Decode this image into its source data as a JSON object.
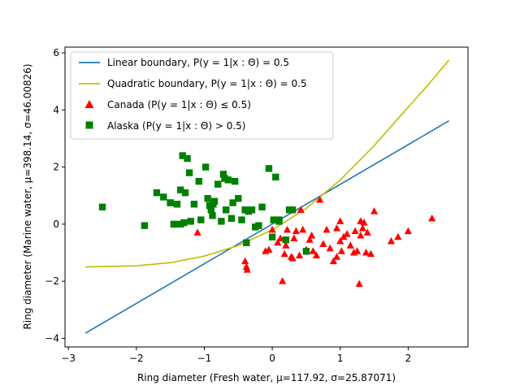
{
  "chart_data": {
    "type": "scatter",
    "title": "",
    "xlabel": "Ring diameter (Fresh water, μ=117.92, σ=25.87071)",
    "ylabel": "Ring diameter (Marine water, μ=398.14, σ=46.00826)",
    "xlim": [
      -3.05,
      2.88
    ],
    "ylim": [
      -4.3,
      6.2
    ],
    "xticks": [
      -3,
      -2,
      -1,
      0,
      1,
      2
    ],
    "yticks": [
      -4,
      -2,
      0,
      2,
      4,
      6
    ],
    "grid": false,
    "legend_position": "top-left",
    "legend": [
      {
        "label": "Linear boundary, P(y = 1|x : Θ) = 0.5",
        "color": "#1f77b4",
        "marker": "line"
      },
      {
        "label": "Quadratic boundary, P(y = 1|x : Θ) = 0.5",
        "color": "#bfbf00",
        "marker": "line"
      },
      {
        "label": "Canada (P(y = 1|x : Θ) ≤ 0.5)",
        "color": "#ff0000",
        "marker": "triangle"
      },
      {
        "label": "Alaska (P(y = 1|x : Θ) > 0.5)",
        "color": "#008000",
        "marker": "square"
      }
    ],
    "lines": [
      {
        "name": "Linear boundary",
        "color": "#1f77b4",
        "x": [
          -2.75,
          2.6
        ],
        "y": [
          -3.82,
          3.62
        ]
      },
      {
        "name": "Quadratic boundary",
        "color": "#bfbf00",
        "x": [
          -2.75,
          -2.0,
          -1.5,
          -1.0,
          -0.5,
          0.0,
          0.5,
          1.0,
          1.5,
          2.0,
          2.3,
          2.6
        ],
        "y": [
          -1.5,
          -1.46,
          -1.35,
          -1.12,
          -0.75,
          -0.2,
          0.55,
          1.55,
          2.75,
          4.1,
          4.9,
          5.75
        ]
      }
    ],
    "series": [
      {
        "name": "Canada",
        "marker": "triangle",
        "color": "#ff0000",
        "x": [
          -1.1,
          -0.4,
          -0.38,
          -0.37,
          -0.1,
          0.0,
          -0.05,
          0.08,
          0.15,
          0.18,
          0.2,
          0.22,
          0.28,
          0.3,
          0.32,
          0.4,
          0.42,
          0.45,
          0.5,
          0.55,
          0.58,
          0.6,
          0.65,
          0.7,
          0.75,
          0.8,
          0.85,
          0.9,
          0.95,
          1.0,
          1.0,
          1.02,
          1.05,
          1.1,
          1.15,
          1.2,
          1.22,
          1.25,
          1.28,
          1.3,
          1.3,
          1.33,
          1.35,
          1.38,
          1.4,
          1.45,
          1.5,
          1.75,
          1.85,
          2.0,
          2.35,
          0.12,
          0.35,
          0.95
        ],
        "y": [
          -0.3,
          -1.3,
          -1.5,
          -1.6,
          -0.95,
          -0.2,
          -0.9,
          -0.65,
          -2.0,
          -1.05,
          -0.75,
          -0.2,
          -1.15,
          -1.2,
          -0.5,
          -1.1,
          0.5,
          -0.2,
          -0.9,
          -0.55,
          -0.4,
          -0.95,
          -1.1,
          0.85,
          -0.7,
          -0.2,
          -0.85,
          -1.3,
          -0.15,
          0.1,
          -0.6,
          -0.95,
          -0.45,
          -0.35,
          -0.75,
          -1.0,
          -0.25,
          -0.95,
          -2.1,
          0.1,
          -0.4,
          -0.15,
          0.05,
          -1.0,
          -0.3,
          -1.05,
          0.45,
          -0.6,
          -0.45,
          -0.25,
          0.2,
          -0.5,
          -0.25,
          -1.15
        ]
      },
      {
        "name": "Alaska",
        "marker": "square",
        "color": "#008000",
        "x": [
          -2.5,
          -1.88,
          -1.7,
          -1.6,
          -1.5,
          -1.45,
          -1.4,
          -1.35,
          -1.32,
          -1.3,
          -1.28,
          -1.25,
          -1.22,
          -1.2,
          -1.15,
          -1.08,
          -1.05,
          -0.98,
          -0.95,
          -0.92,
          -0.9,
          -0.88,
          -0.85,
          -0.8,
          -0.75,
          -0.72,
          -0.7,
          -0.68,
          -0.65,
          -0.6,
          -0.58,
          -0.55,
          -0.5,
          -0.45,
          -0.4,
          -0.38,
          -0.35,
          -0.3,
          -0.25,
          -0.2,
          -0.15,
          -0.05,
          0.0,
          0.02,
          0.05,
          0.1,
          0.2,
          0.25,
          0.3,
          0.5,
          -1.5,
          -1.35,
          -0.87,
          0.1
        ],
        "y": [
          0.6,
          -0.05,
          1.1,
          0.95,
          0.75,
          0.0,
          0.7,
          1.2,
          2.4,
          0.05,
          1.1,
          2.3,
          1.8,
          0.1,
          0.7,
          1.5,
          0.15,
          2.0,
          0.9,
          0.65,
          0.5,
          0.3,
          0.8,
          1.4,
          0.1,
          1.75,
          1.6,
          0.5,
          1.55,
          0.2,
          0.75,
          1.5,
          0.9,
          0.15,
          0.5,
          -0.65,
          0.45,
          0.5,
          -0.1,
          -0.05,
          0.6,
          1.95,
          -0.45,
          0.15,
          1.65,
          0.1,
          -0.55,
          0.5,
          0.5,
          -0.95,
          0.75,
          0.0,
          0.7,
          0.15
        ]
      }
    ]
  }
}
